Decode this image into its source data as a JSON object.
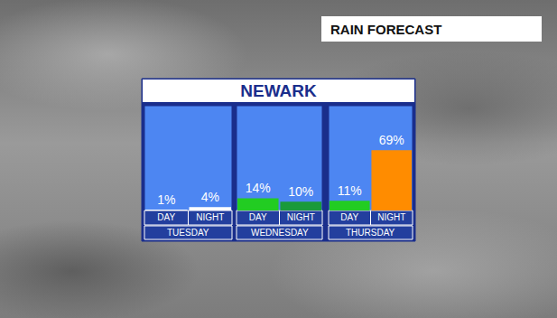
{
  "chart_data": {
    "type": "bar",
    "title": "NEWARK",
    "subtitle": "RAIN FORECAST",
    "categories": [
      "TUESDAY",
      "WEDNESDAY",
      "THURSDAY"
    ],
    "series": [
      {
        "name": "DAY",
        "values": [
          1,
          14,
          11
        ],
        "value_labels": [
          "1%",
          "14%",
          "11%"
        ],
        "colors": [
          "#ffffff",
          "#22cc22",
          "#22cc22"
        ]
      },
      {
        "name": "NIGHT",
        "values": [
          4,
          10,
          69
        ],
        "value_labels": [
          "4%",
          "10%",
          "69%"
        ],
        "colors": [
          "#ffffff",
          "#1a9a3a",
          "#ff8c00"
        ]
      }
    ],
    "ylim": [
      0,
      120
    ],
    "grid": false,
    "data_labels": true,
    "tick_labels": "x"
  }
}
